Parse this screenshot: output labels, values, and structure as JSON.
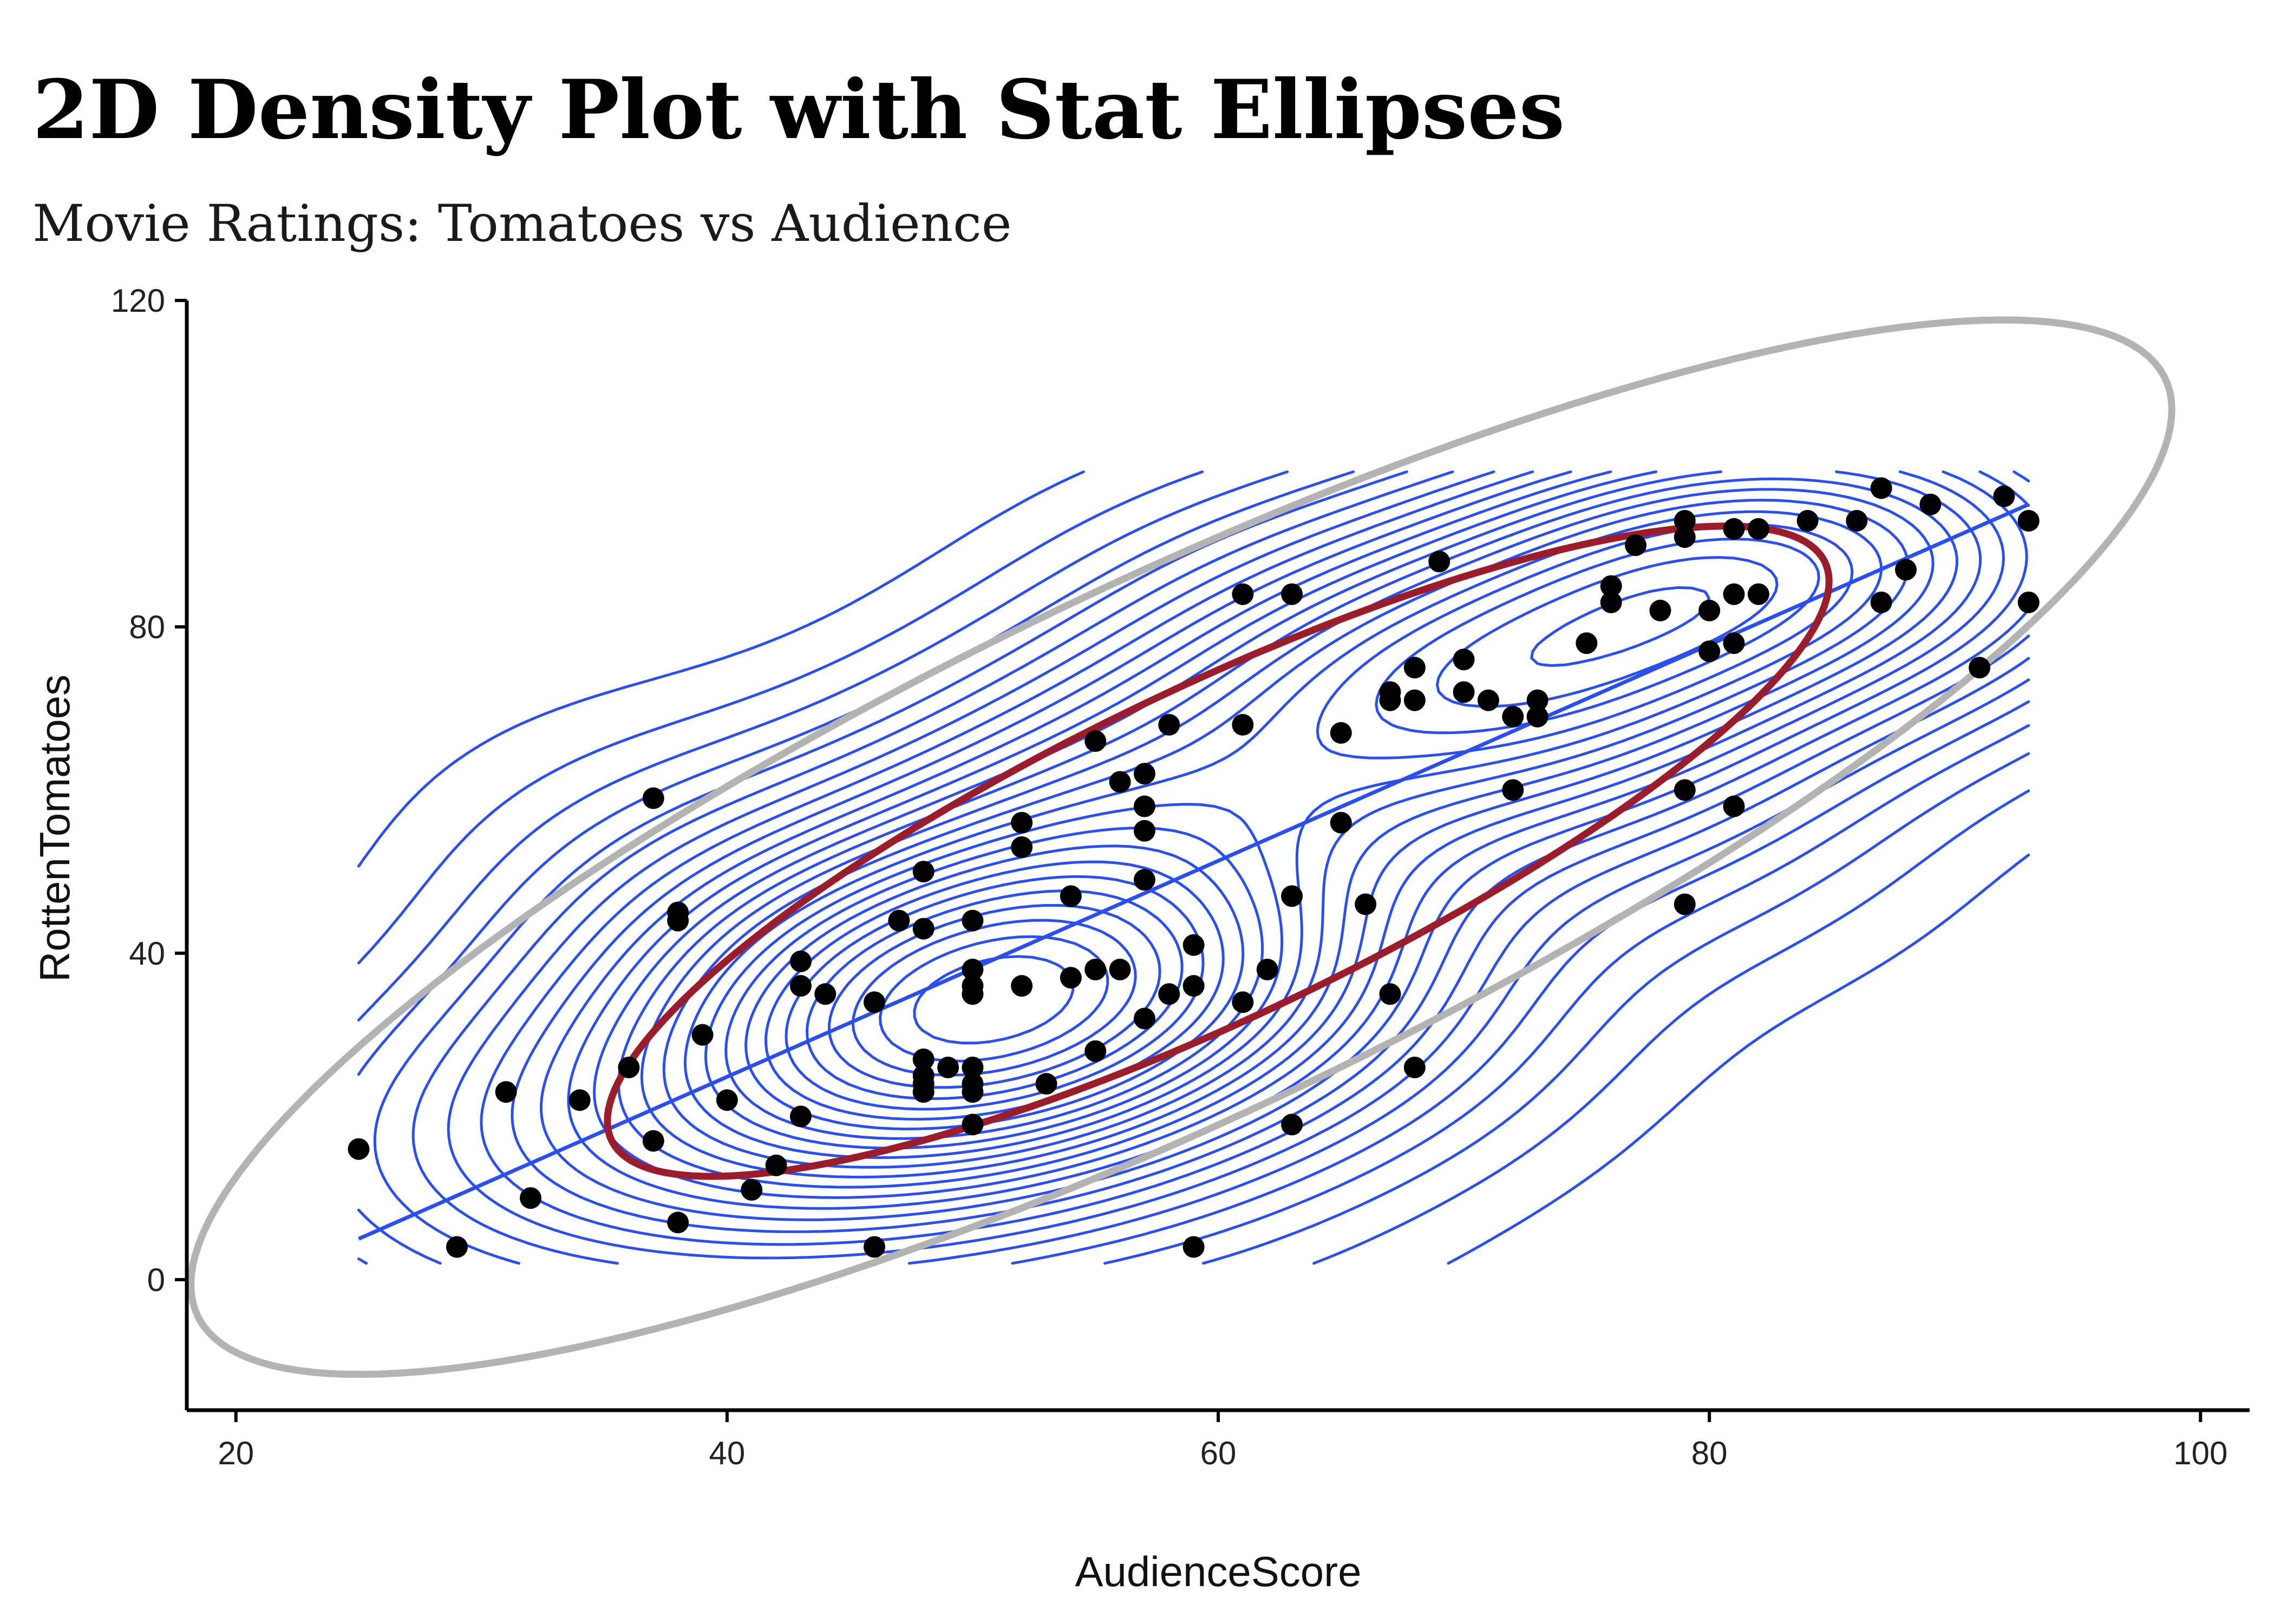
{
  "chart_data": {
    "type": "scatter",
    "title": "2D Density Plot with Stat Ellipses",
    "subtitle": "Movie Ratings: Tomatoes vs Audience",
    "xlabel": "AudienceScore",
    "ylabel": "RottenTomatoes",
    "xlim": [
      18,
      102
    ],
    "ylim": [
      -16,
      120
    ],
    "xticks": [
      20,
      40,
      60,
      80,
      100
    ],
    "yticks": [
      0,
      40,
      80,
      120
    ],
    "grid": false,
    "legend": "none",
    "colors": {
      "points": "#000000",
      "density": "#2a4ff0",
      "regression": "#2a4ff0",
      "ellipse_inner": "#9b1c2a",
      "ellipse_outer": "#b3b3b3"
    },
    "points": [
      [
        25,
        16
      ],
      [
        29,
        4
      ],
      [
        31,
        23
      ],
      [
        32,
        10
      ],
      [
        34,
        22
      ],
      [
        36,
        26
      ],
      [
        37,
        17
      ],
      [
        37,
        59
      ],
      [
        38,
        45
      ],
      [
        38,
        44
      ],
      [
        38,
        7
      ],
      [
        39,
        30
      ],
      [
        40,
        22
      ],
      [
        41,
        11
      ],
      [
        42,
        14
      ],
      [
        43,
        39
      ],
      [
        43,
        36
      ],
      [
        43,
        20
      ],
      [
        44,
        35
      ],
      [
        46,
        34
      ],
      [
        46,
        4
      ],
      [
        47,
        44
      ],
      [
        48,
        50
      ],
      [
        48,
        43
      ],
      [
        48,
        27
      ],
      [
        48,
        25
      ],
      [
        48,
        24
      ],
      [
        48,
        23
      ],
      [
        49,
        26
      ],
      [
        50,
        44
      ],
      [
        50,
        38
      ],
      [
        50,
        36
      ],
      [
        50,
        35
      ],
      [
        50,
        26
      ],
      [
        50,
        24
      ],
      [
        50,
        23
      ],
      [
        50,
        19
      ],
      [
        52,
        53
      ],
      [
        52,
        56
      ],
      [
        52,
        36
      ],
      [
        53,
        24
      ],
      [
        54,
        47
      ],
      [
        54,
        37
      ],
      [
        55,
        66
      ],
      [
        55,
        38
      ],
      [
        55,
        28
      ],
      [
        56,
        61
      ],
      [
        56,
        38
      ],
      [
        57,
        62
      ],
      [
        57,
        58
      ],
      [
        57,
        55
      ],
      [
        57,
        49
      ],
      [
        57,
        32
      ],
      [
        58,
        68
      ],
      [
        58,
        35
      ],
      [
        59,
        41
      ],
      [
        59,
        36
      ],
      [
        59,
        4
      ],
      [
        61,
        68
      ],
      [
        61,
        84
      ],
      [
        61,
        34
      ],
      [
        62,
        38
      ],
      [
        63,
        84
      ],
      [
        63,
        47
      ],
      [
        63,
        19
      ],
      [
        65,
        67
      ],
      [
        65,
        56
      ],
      [
        66,
        46
      ],
      [
        67,
        72
      ],
      [
        67,
        71
      ],
      [
        67,
        35
      ],
      [
        68,
        75
      ],
      [
        68,
        71
      ],
      [
        68,
        26
      ],
      [
        69,
        88
      ],
      [
        70,
        76
      ],
      [
        70,
        72
      ],
      [
        71,
        71
      ],
      [
        72,
        69
      ],
      [
        72,
        60
      ],
      [
        73,
        71
      ],
      [
        73,
        69
      ],
      [
        75,
        78
      ],
      [
        76,
        85
      ],
      [
        76,
        83
      ],
      [
        77,
        90
      ],
      [
        78,
        82
      ],
      [
        79,
        93
      ],
      [
        79,
        91
      ],
      [
        79,
        60
      ],
      [
        79,
        46
      ],
      [
        80,
        82
      ],
      [
        80,
        77
      ],
      [
        81,
        92
      ],
      [
        81,
        84
      ],
      [
        81,
        78
      ],
      [
        81,
        58
      ],
      [
        82,
        92
      ],
      [
        82,
        84
      ],
      [
        84,
        93
      ],
      [
        86,
        93
      ],
      [
        87,
        97
      ],
      [
        87,
        83
      ],
      [
        88,
        87
      ],
      [
        89,
        95
      ],
      [
        91,
        75
      ],
      [
        92,
        96
      ],
      [
        93,
        93
      ],
      [
        93,
        83
      ]
    ],
    "regression_line": {
      "x": [
        25,
        93
      ],
      "y": [
        5,
        95
      ]
    },
    "ellipse_inner": {
      "center": [
        60,
        52.5
      ],
      "level": 0.68
    },
    "ellipse_outer": {
      "center": [
        58.5,
        53
      ],
      "level": 0.95
    }
  }
}
